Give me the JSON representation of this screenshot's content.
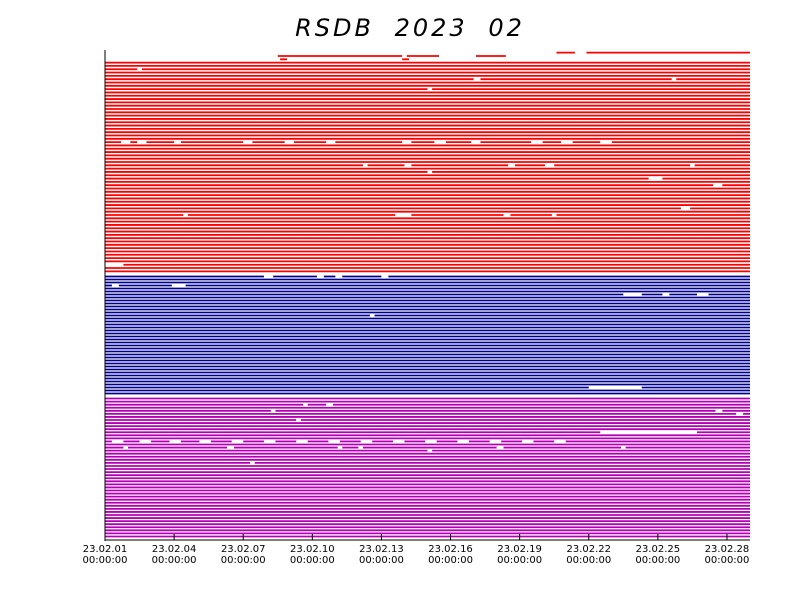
{
  "chart_data": {
    "type": "availability",
    "title": "RSDB 2023 02",
    "xlim": [
      0,
      28
    ],
    "xticks": [
      {
        "value": 0,
        "label": "23.02.01 00:00:00"
      },
      {
        "value": 3,
        "label": "23.02.04 00:00:00"
      },
      {
        "value": 6,
        "label": "23.02.07 00:00:00"
      },
      {
        "value": 9,
        "label": "23.02.10 00:00:00"
      },
      {
        "value": 12,
        "label": "23.02.13 00:00:00"
      },
      {
        "value": 15,
        "label": "23.02.16 00:00:00"
      },
      {
        "value": 18,
        "label": "23.02.19 00:00:00"
      },
      {
        "value": 21,
        "label": "23.02.22 00:00:00"
      },
      {
        "value": 24,
        "label": "23.02.25 00:00:00"
      },
      {
        "value": 27,
        "label": "23.02.28 00:00:00"
      }
    ],
    "groups": [
      {
        "color": "#ff0000",
        "rows": [
          [
            [
              19.6,
              20.4
            ],
            [
              20.9,
              28
            ]
          ],
          [
            [
              7.5,
              12.9
            ],
            [
              13.1,
              14.5
            ],
            [
              16.1,
              17.4
            ]
          ],
          [
            [
              7.6,
              7.9
            ],
            [
              12.9,
              13.2
            ]
          ],
          [
            [
              0,
              28
            ]
          ],
          [
            [
              0,
              28
            ]
          ],
          [
            [
              0,
              1.4
            ],
            [
              1.6,
              28
            ]
          ],
          [
            [
              0,
              28
            ]
          ],
          [
            [
              0,
              28
            ]
          ],
          [
            [
              0,
              16
            ],
            [
              16.3,
              24.6
            ],
            [
              24.8,
              28
            ]
          ],
          [
            [
              0,
              28
            ]
          ],
          [
            [
              0,
              28
            ]
          ],
          [
            [
              0,
              14
            ],
            [
              14.2,
              28
            ]
          ],
          [
            [
              0,
              28
            ]
          ],
          [
            [
              0,
              28
            ]
          ],
          [
            [
              0,
              28
            ]
          ],
          [
            [
              0,
              28
            ]
          ],
          [
            [
              0,
              28
            ]
          ],
          [
            [
              0,
              28
            ]
          ],
          [
            [
              0,
              28
            ]
          ],
          [
            [
              0,
              28
            ]
          ],
          [
            [
              0,
              28
            ]
          ],
          [
            [
              0,
              28
            ]
          ],
          [
            [
              0,
              28
            ]
          ],
          [
            [
              0,
              28
            ]
          ],
          [
            [
              0,
              28
            ]
          ],
          [
            [
              0,
              28
            ]
          ],
          [
            [
              0,
              28
            ]
          ],
          [
            [
              0,
              0.7
            ],
            [
              1.1,
              1.4
            ],
            [
              1.8,
              3
            ],
            [
              3.3,
              6
            ],
            [
              6.4,
              7.8
            ],
            [
              8.2,
              9.6
            ],
            [
              10,
              12.9
            ],
            [
              13.3,
              14.3
            ],
            [
              14.8,
              15.9
            ],
            [
              16.3,
              18.5
            ],
            [
              19,
              19.8
            ],
            [
              20.3,
              21.5
            ],
            [
              22,
              28
            ]
          ],
          [
            [
              0,
              28
            ]
          ],
          [
            [
              0,
              28
            ]
          ],
          [
            [
              0,
              28
            ]
          ],
          [
            [
              0,
              28
            ]
          ],
          [
            [
              0,
              28
            ]
          ],
          [
            [
              0,
              28
            ]
          ],
          [
            [
              0,
              11.2
            ],
            [
              11.4,
              13
            ],
            [
              13.3,
              17.5
            ],
            [
              17.8,
              19.1
            ],
            [
              19.5,
              25.4
            ],
            [
              25.6,
              28
            ]
          ],
          [
            [
              0,
              28
            ]
          ],
          [
            [
              0,
              14
            ],
            [
              14.2,
              28
            ]
          ],
          [
            [
              0,
              28
            ]
          ],
          [
            [
              0,
              23.6
            ],
            [
              24.2,
              28
            ]
          ],
          [
            [
              0,
              28
            ]
          ],
          [
            [
              0,
              26.4
            ],
            [
              26.8,
              28
            ]
          ],
          [
            [
              0,
              28
            ]
          ],
          [
            [
              0,
              28
            ]
          ],
          [
            [
              0,
              28
            ]
          ],
          [
            [
              0,
              28
            ]
          ],
          [
            [
              0,
              28
            ]
          ],
          [
            [
              0,
              28
            ]
          ],
          [
            [
              0,
              25
            ],
            [
              25.4,
              28
            ]
          ],
          [
            [
              0,
              28
            ]
          ],
          [
            [
              0,
              3.4
            ],
            [
              3.6,
              12.6
            ],
            [
              13.3,
              17.3
            ],
            [
              17.6,
              19.4
            ],
            [
              19.6,
              28
            ]
          ],
          [
            [
              0,
              28
            ]
          ],
          [
            [
              0,
              28
            ]
          ],
          [
            [
              0,
              28
            ]
          ],
          [
            [
              0,
              28
            ]
          ],
          [
            [
              0,
              28
            ]
          ],
          [
            [
              0,
              28
            ]
          ],
          [
            [
              0,
              28
            ]
          ],
          [
            [
              0,
              28
            ]
          ],
          [
            [
              0,
              28
            ]
          ],
          [
            [
              0,
              28
            ]
          ],
          [
            [
              0,
              28
            ]
          ],
          [
            [
              0,
              28
            ]
          ],
          [
            [
              0,
              28
            ]
          ],
          [
            [
              0,
              28
            ]
          ],
          [
            [
              0.8,
              28
            ]
          ],
          [
            [
              0,
              28
            ]
          ],
          [
            [
              0,
              28
            ]
          ]
        ]
      },
      {
        "color": "#00008b",
        "rows": [
          [
            [
              0,
              6.9
            ],
            [
              7.3,
              9.2
            ],
            [
              9.5,
              10
            ],
            [
              10.3,
              12
            ],
            [
              12.3,
              28
            ]
          ],
          [
            [
              0,
              28
            ]
          ],
          [
            [
              0,
              28
            ]
          ],
          [
            [
              0,
              0.3
            ],
            [
              0.6,
              2.9
            ],
            [
              3.5,
              28
            ]
          ],
          [
            [
              0,
              28
            ]
          ],
          [
            [
              0,
              28
            ]
          ],
          [
            [
              0,
              22.5
            ],
            [
              23.3,
              24.2
            ],
            [
              24.5,
              25.7
            ],
            [
              26.2,
              28
            ]
          ],
          [
            [
              0,
              28
            ]
          ],
          [
            [
              0,
              28
            ]
          ],
          [
            [
              0,
              28
            ]
          ],
          [
            [
              0,
              28
            ]
          ],
          [
            [
              0,
              28
            ]
          ],
          [
            [
              0,
              28
            ]
          ],
          [
            [
              0,
              11.5
            ],
            [
              11.7,
              28
            ]
          ],
          [
            [
              0,
              28
            ]
          ],
          [
            [
              0,
              28
            ]
          ],
          [
            [
              0,
              28
            ]
          ],
          [
            [
              0,
              28
            ]
          ],
          [
            [
              0,
              28
            ]
          ],
          [
            [
              0,
              28
            ]
          ],
          [
            [
              0,
              28
            ]
          ],
          [
            [
              0,
              28
            ]
          ],
          [
            [
              0,
              28
            ]
          ],
          [
            [
              0,
              28
            ]
          ],
          [
            [
              0,
              28
            ]
          ],
          [
            [
              0,
              28
            ]
          ],
          [
            [
              0,
              28
            ]
          ],
          [
            [
              0,
              28
            ]
          ],
          [
            [
              0,
              28
            ]
          ],
          [
            [
              0,
              28
            ]
          ],
          [
            [
              0,
              28
            ]
          ],
          [
            [
              0,
              28
            ]
          ],
          [
            [
              0,
              28
            ]
          ],
          [
            [
              0,
              28
            ]
          ],
          [
            [
              0,
              28
            ]
          ],
          [
            [
              0,
              28
            ]
          ],
          [
            [
              0,
              28
            ]
          ],
          [
            [
              0,
              21
            ],
            [
              23.3,
              28
            ]
          ],
          [
            [
              0,
              28
            ]
          ],
          [
            [
              0,
              28
            ]
          ]
        ]
      },
      {
        "color": "#b400b4",
        "rows": [
          [
            [
              0,
              28
            ]
          ],
          [
            [
              0,
              28
            ]
          ],
          [
            [
              0,
              8.6
            ],
            [
              8.8,
              9.6
            ],
            [
              9.9,
              28
            ]
          ],
          [
            [
              0,
              28
            ]
          ],
          [
            [
              0,
              7.2
            ],
            [
              7.4,
              26.5
            ],
            [
              26.8,
              28
            ]
          ],
          [
            [
              0,
              27.4
            ],
            [
              27.7,
              28
            ]
          ],
          [
            [
              0,
              28
            ]
          ],
          [
            [
              0,
              8.3
            ],
            [
              8.5,
              28
            ]
          ],
          [
            [
              0,
              28
            ]
          ],
          [
            [
              0,
              28
            ]
          ],
          [
            [
              0,
              28
            ]
          ],
          [
            [
              0,
              21.5
            ],
            [
              25.7,
              28
            ]
          ],
          [
            [
              0,
              28
            ]
          ],
          [
            [
              0,
              28
            ]
          ],
          [
            [
              0,
              0.3
            ],
            [
              0.8,
              1.5
            ],
            [
              2,
              2.8
            ],
            [
              3.3,
              4.1
            ],
            [
              4.6,
              5.5
            ],
            [
              6,
              6.9
            ],
            [
              7.4,
              8.3
            ],
            [
              8.8,
              9.7
            ],
            [
              10.2,
              11.1
            ],
            [
              11.6,
              12.5
            ],
            [
              13,
              13.9
            ],
            [
              14.4,
              15.3
            ],
            [
              15.8,
              16.7
            ],
            [
              17.2,
              18.1
            ],
            [
              18.6,
              19.5
            ],
            [
              20,
              28
            ]
          ],
          [
            [
              0,
              28
            ]
          ],
          [
            [
              0,
              0.8
            ],
            [
              1,
              5.3
            ],
            [
              5.6,
              10.1
            ],
            [
              10.3,
              11
            ],
            [
              11.2,
              17
            ],
            [
              17.3,
              22.4
            ],
            [
              22.6,
              28
            ]
          ],
          [
            [
              0,
              14
            ],
            [
              14.2,
              28
            ]
          ],
          [
            [
              0,
              28
            ]
          ],
          [
            [
              0,
              28
            ]
          ],
          [
            [
              0,
              28
            ]
          ],
          [
            [
              0,
              6.3
            ],
            [
              6.5,
              28
            ]
          ],
          [
            [
              0,
              28
            ]
          ],
          [
            [
              0,
              28
            ]
          ],
          [
            [
              0,
              28
            ]
          ],
          [
            [
              0,
              28
            ]
          ],
          [
            [
              0,
              28
            ]
          ],
          [
            [
              0,
              28
            ]
          ],
          [
            [
              0,
              28
            ]
          ],
          [
            [
              0,
              28
            ]
          ],
          [
            [
              0,
              28
            ]
          ],
          [
            [
              0,
              28
            ]
          ],
          [
            [
              0,
              28
            ]
          ],
          [
            [
              0,
              28
            ]
          ],
          [
            [
              0,
              28
            ]
          ],
          [
            [
              0,
              28
            ]
          ],
          [
            [
              0,
              28
            ]
          ],
          [
            [
              0,
              28
            ]
          ],
          [
            [
              0,
              28
            ]
          ],
          [
            [
              0,
              28
            ]
          ],
          [
            [
              0,
              28
            ]
          ],
          [
            [
              0,
              28
            ]
          ],
          [
            [
              0,
              28
            ]
          ],
          [
            [
              0,
              28
            ]
          ],
          [
            [
              0,
              28
            ]
          ],
          [
            [
              0,
              28
            ]
          ]
        ]
      }
    ]
  }
}
